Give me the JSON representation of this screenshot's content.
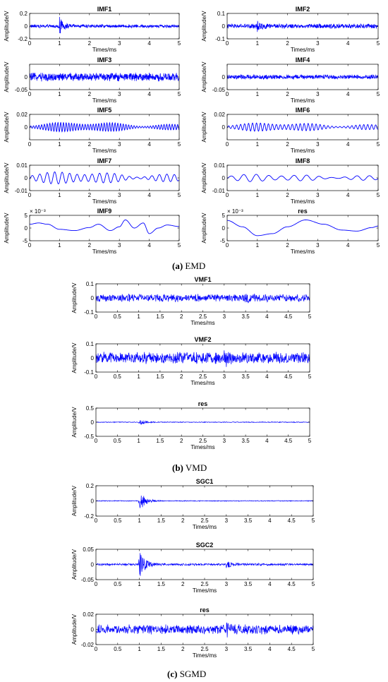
{
  "figure": {
    "captions": [
      {
        "letter": "(a)",
        "text": " EMD"
      },
      {
        "letter": "(b)",
        "text": " VMD"
      },
      {
        "letter": "(c)",
        "text": " SGMD"
      }
    ]
  },
  "chart_data": [
    {
      "type": "line",
      "group": "a",
      "title": "IMF1",
      "xlabel": "Times/ms",
      "ylabel": "Amplitude/V",
      "xlim": [
        0,
        5
      ],
      "ylim": [
        -0.2,
        0.2
      ],
      "xticks": [
        0,
        1,
        2,
        3,
        4,
        5
      ],
      "yticks": [
        "0.2",
        "0",
        "-0.2"
      ],
      "exponent": "",
      "color": "#0000ff",
      "signal": {
        "kind": "noise",
        "amp": 0.03,
        "bursts": [
          {
            "t": 1.0,
            "amp": 0.12
          }
        ]
      }
    },
    {
      "type": "line",
      "group": "a",
      "title": "IMF2",
      "xlabel": "Times/ms",
      "ylabel": "Amplitude/V",
      "xlim": [
        0,
        5
      ],
      "ylim": [
        -0.1,
        0.1
      ],
      "xticks": [
        0,
        1,
        2,
        3,
        4,
        5
      ],
      "yticks": [
        "0.1",
        "0",
        "-0.1"
      ],
      "exponent": "",
      "color": "#0000ff",
      "signal": {
        "kind": "noise",
        "amp": 0.02,
        "bursts": [
          {
            "t": 1.0,
            "amp": 0.03
          }
        ]
      }
    },
    {
      "type": "line",
      "group": "a",
      "title": "IMF3",
      "xlabel": "Times/ms",
      "ylabel": "Amplitude/V",
      "xlim": [
        0,
        5
      ],
      "ylim": [
        -0.05,
        0.05
      ],
      "xticks": [
        0,
        1,
        2,
        3,
        4,
        5
      ],
      "yticks": [
        "0",
        "-0.05"
      ],
      "exponent": "",
      "color": "#0000ff",
      "signal": {
        "kind": "noise",
        "amp": 0.018,
        "bursts": []
      }
    },
    {
      "type": "line",
      "group": "a",
      "title": "IMF4",
      "xlabel": "Times/ms",
      "ylabel": "Amplitude/V",
      "xlim": [
        0,
        5
      ],
      "ylim": [
        -0.05,
        0.05
      ],
      "xticks": [
        0,
        1,
        2,
        3,
        4,
        5
      ],
      "yticks": [
        "0",
        "-0.05"
      ],
      "exponent": "",
      "color": "#0000ff",
      "signal": {
        "kind": "noise",
        "amp": 0.01,
        "bursts": []
      }
    },
    {
      "type": "line",
      "group": "a",
      "title": "IMF5",
      "xlabel": "Times/ms",
      "ylabel": "Amplitude/V",
      "xlim": [
        0,
        5
      ],
      "ylim": [
        -0.02,
        0.02
      ],
      "xticks": [
        0,
        1,
        2,
        3,
        4,
        5
      ],
      "yticks": [
        "0.02",
        "0"
      ],
      "exponent": "",
      "color": "#0000ff",
      "signal": {
        "kind": "osc",
        "amp": 0.008,
        "cycles": 55
      }
    },
    {
      "type": "line",
      "group": "a",
      "title": "IMF6",
      "xlabel": "Times/ms",
      "ylabel": "Amplitude/V",
      "xlim": [
        0,
        5
      ],
      "ylim": [
        -0.02,
        0.02
      ],
      "xticks": [
        0,
        1,
        2,
        3,
        4,
        5
      ],
      "yticks": [
        "0.02",
        "0"
      ],
      "exponent": "",
      "color": "#0000ff",
      "signal": {
        "kind": "osc",
        "amp": 0.007,
        "cycles": 38
      }
    },
    {
      "type": "line",
      "group": "a",
      "title": "IMF7",
      "xlabel": "Times/ms",
      "ylabel": "Amplitude/V",
      "xlim": [
        0,
        5
      ],
      "ylim": [
        -0.01,
        0.01
      ],
      "xticks": [
        0,
        1,
        2,
        3,
        4,
        5
      ],
      "yticks": [
        "0.01",
        "0",
        "-0.01"
      ],
      "exponent": "",
      "color": "#0000ff",
      "signal": {
        "kind": "osc",
        "amp": 0.005,
        "cycles": 20
      }
    },
    {
      "type": "line",
      "group": "a",
      "title": "IMF8",
      "xlabel": "Times/ms",
      "ylabel": "Amplitude/V",
      "xlim": [
        0,
        5
      ],
      "ylim": [
        -0.01,
        0.01
      ],
      "xticks": [
        0,
        1,
        2,
        3,
        4,
        5
      ],
      "yticks": [
        "0.01",
        "0",
        "-0.01"
      ],
      "exponent": "",
      "color": "#0000ff",
      "signal": {
        "kind": "osc",
        "amp": 0.003,
        "cycles": 12
      }
    },
    {
      "type": "line",
      "group": "a",
      "title": "IMF9",
      "xlabel": "Times/ms",
      "ylabel": "Amplitude/V",
      "xlim": [
        0,
        5
      ],
      "ylim": [
        -5,
        5
      ],
      "xticks": [
        0,
        1,
        2,
        3,
        4,
        5
      ],
      "yticks": [
        "5",
        "0",
        "-5"
      ],
      "exponent": "× 10⁻³",
      "color": "#0000ff",
      "signal": {
        "kind": "curve",
        "x": [
          0,
          0.3,
          0.6,
          1.0,
          1.5,
          2.0,
          2.3,
          2.7,
          3.0,
          3.2,
          3.5,
          3.8,
          4.0,
          4.3,
          4.6,
          5.0
        ],
        "y": [
          1.5,
          2.0,
          1.5,
          -0.5,
          -1.0,
          0.2,
          1.5,
          -1.0,
          0.5,
          3.2,
          0.0,
          2.0,
          -2.2,
          0.0,
          1.2,
          0.6
        ]
      }
    },
    {
      "type": "line",
      "group": "a",
      "title": "res",
      "xlabel": "Times/ms",
      "ylabel": "Amplitude/V",
      "xlim": [
        0,
        5
      ],
      "ylim": [
        -5,
        5
      ],
      "xticks": [
        0,
        1,
        2,
        3,
        4,
        5
      ],
      "yticks": [
        "5",
        "0",
        "-5"
      ],
      "exponent": "× 10⁻³",
      "color": "#0000ff",
      "signal": {
        "kind": "curve",
        "x": [
          0,
          0.5,
          1.0,
          1.5,
          2.0,
          2.6,
          3.2,
          3.8,
          4.3,
          4.8,
          5.0
        ],
        "y": [
          3.0,
          0.5,
          -3.0,
          -2.2,
          0.5,
          3.2,
          1.5,
          -0.8,
          -1.2,
          0.2,
          0.8
        ]
      }
    },
    {
      "type": "line",
      "group": "b",
      "title": "VMF1",
      "xlabel": "Times/ms",
      "ylabel": "Amplitude/V",
      "xlim": [
        0,
        5
      ],
      "ylim": [
        -0.1,
        0.1
      ],
      "xticks": [
        "0",
        "0.5",
        "1",
        "1.5",
        "2",
        "2.5",
        "3",
        "3.5",
        "4",
        "4.5",
        "5"
      ],
      "yticks": [
        "0.1",
        "0",
        "-0.1"
      ],
      "exponent": "",
      "color": "#0000ff",
      "signal": {
        "kind": "noise",
        "amp": 0.03,
        "bursts": [
          {
            "t": 3.5,
            "amp": 0.03
          }
        ]
      }
    },
    {
      "type": "line",
      "group": "b",
      "title": "VMF2",
      "xlabel": "Times/ms",
      "ylabel": "Amplitude/V",
      "xlim": [
        0,
        5
      ],
      "ylim": [
        -0.1,
        0.1
      ],
      "xticks": [
        "0",
        "0.5",
        "1",
        "1.5",
        "2",
        "2.5",
        "3",
        "3.5",
        "4",
        "4.5",
        "5"
      ],
      "yticks": [
        "0.1",
        "0",
        "-0.1"
      ],
      "exponent": "",
      "color": "#0000ff",
      "signal": {
        "kind": "noise",
        "amp": 0.045,
        "bursts": [
          {
            "t": 3.0,
            "amp": 0.03
          }
        ]
      }
    },
    {
      "type": "line",
      "group": "b",
      "title": "res",
      "xlabel": "Times/ms",
      "ylabel": "Amplitude/V",
      "xlim": [
        0,
        5
      ],
      "ylim": [
        -0.5,
        0.5
      ],
      "xticks": [
        "0",
        "0.5",
        "1",
        "1.5",
        "2",
        "2.5",
        "3",
        "3.5",
        "4",
        "4.5",
        "5"
      ],
      "yticks": [
        "0.5",
        "0",
        "-0.5"
      ],
      "exponent": "",
      "color": "#0000ff",
      "signal": {
        "kind": "noise",
        "amp": 0.015,
        "bursts": [
          {
            "t": 1.0,
            "amp": 0.12
          }
        ]
      }
    },
    {
      "type": "line",
      "group": "c",
      "title": "SGC1",
      "xlabel": "Times/ms",
      "ylabel": "Amplitude/V",
      "xlim": [
        0,
        5
      ],
      "ylim": [
        -0.2,
        0.2
      ],
      "xticks": [
        "0",
        "0.5",
        "1",
        "1.5",
        "2",
        "2.5",
        "3",
        "3.5",
        "4",
        "4.5",
        "5"
      ],
      "yticks": [
        "0.2",
        "0",
        "-0.2"
      ],
      "exponent": "",
      "color": "#0000ff",
      "signal": {
        "kind": "noise",
        "amp": 0.006,
        "bursts": [
          {
            "t": 1.0,
            "amp": 0.15
          }
        ]
      }
    },
    {
      "type": "line",
      "group": "c",
      "title": "SGC2",
      "xlabel": "Times/ms",
      "ylabel": "Amplitude/V",
      "xlim": [
        0,
        5
      ],
      "ylim": [
        -0.05,
        0.05
      ],
      "xticks": [
        "0",
        "0.5",
        "1",
        "1.5",
        "2",
        "2.5",
        "3",
        "3.5",
        "4",
        "4.5",
        "5"
      ],
      "yticks": [
        "0.05",
        "0",
        "-0.05"
      ],
      "exponent": "",
      "color": "#0000ff",
      "signal": {
        "kind": "noise",
        "amp": 0.004,
        "bursts": [
          {
            "t": 1.0,
            "amp": 0.045
          },
          {
            "t": 3.0,
            "amp": 0.012
          }
        ]
      }
    },
    {
      "type": "line",
      "group": "c",
      "title": "res",
      "xlabel": "Times/ms",
      "ylabel": "Amplitude/V",
      "xlim": [
        0,
        5
      ],
      "ylim": [
        -0.02,
        0.02
      ],
      "xticks": [
        "0",
        "0.5",
        "1",
        "1.5",
        "2",
        "2.5",
        "3",
        "3.5",
        "4",
        "4.5",
        "5"
      ],
      "yticks": [
        "0.02",
        "0",
        "-0.02"
      ],
      "exponent": "",
      "color": "#0000ff",
      "signal": {
        "kind": "noise",
        "amp": 0.007,
        "bursts": [
          {
            "t": 3.0,
            "amp": 0.006
          }
        ]
      }
    }
  ]
}
